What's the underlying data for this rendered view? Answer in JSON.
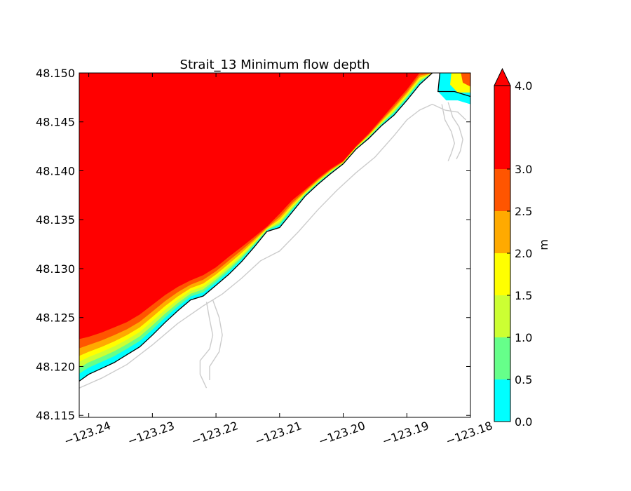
{
  "chart_data": {
    "type": "heatmap",
    "title": "Strait_13 Minimum flow depth",
    "xlabel": "",
    "ylabel": "",
    "xlim": [
      -123.2415,
      -123.18
    ],
    "ylim": [
      48.1148,
      48.15
    ],
    "x_ticks": [
      -123.24,
      -123.23,
      -123.22,
      -123.21,
      -123.2,
      -123.19,
      -123.18
    ],
    "x_tick_labels": [
      "−123.24",
      "−123.23",
      "−123.22",
      "−123.21",
      "−123.20",
      "−123.19",
      "−123.18"
    ],
    "y_ticks": [
      48.115,
      48.12,
      48.125,
      48.13,
      48.135,
      48.14,
      48.145,
      48.15
    ],
    "y_tick_labels": [
      "48.115",
      "48.120",
      "48.125",
      "48.130",
      "48.135",
      "48.140",
      "48.145",
      "48.150"
    ],
    "colorbar": {
      "label": "m",
      "levels": [
        0.0,
        0.5,
        1.0,
        1.5,
        2.0,
        2.5,
        3.0,
        4.0
      ],
      "level_labels": [
        "0.0",
        "0.5",
        "1.0",
        "1.5",
        "2.0",
        "2.5",
        "3.0",
        "4.0"
      ],
      "colors": [
        "#00ffff",
        "#66ff8a",
        "#ccff33",
        "#ffff00",
        "#ffaa00",
        "#ff5500",
        "#ff0000"
      ],
      "extend": "max"
    },
    "shoreline": [
      [
        -123.2415,
        48.1185
      ],
      [
        -123.24,
        48.1192
      ],
      [
        -123.238,
        48.1198
      ],
      [
        -123.236,
        48.1204
      ],
      [
        -123.234,
        48.1212
      ],
      [
        -123.232,
        48.122
      ],
      [
        -123.23,
        48.1232
      ],
      [
        -123.228,
        48.1245
      ],
      [
        -123.226,
        48.1257
      ],
      [
        -123.224,
        48.1268
      ],
      [
        -123.222,
        48.1272
      ],
      [
        -123.22,
        48.1283
      ],
      [
        -123.218,
        48.1294
      ],
      [
        -123.216,
        48.1307
      ],
      [
        -123.214,
        48.1322
      ],
      [
        -123.212,
        48.1338
      ],
      [
        -123.21,
        48.1342
      ],
      [
        -123.208,
        48.1358
      ],
      [
        -123.206,
        48.1374
      ],
      [
        -123.204,
        48.1386
      ],
      [
        -123.202,
        48.1397
      ],
      [
        -123.2,
        48.1407
      ],
      [
        -123.198,
        48.1422
      ],
      [
        -123.196,
        48.1433
      ],
      [
        -123.194,
        48.1446
      ],
      [
        -123.192,
        48.1457
      ],
      [
        -123.19,
        48.1472
      ],
      [
        -123.188,
        48.1488
      ],
      [
        -123.186,
        48.15
      ]
    ],
    "upper_shore": [
      [
        -123.2415,
        48.1228
      ],
      [
        -123.239,
        48.1232
      ],
      [
        -123.236,
        48.124
      ],
      [
        -123.233,
        48.1248
      ],
      [
        -123.23,
        48.1263
      ],
      [
        -123.227,
        48.1278
      ],
      [
        -123.224,
        48.1288
      ],
      [
        -123.221,
        48.1296
      ],
      [
        -123.218,
        48.1312
      ],
      [
        -123.215,
        48.1327
      ],
      [
        -123.212,
        48.1343
      ],
      [
        -123.21,
        48.1356
      ],
      [
        -123.208,
        48.137
      ],
      [
        -123.205,
        48.1386
      ],
      [
        -123.203,
        48.1398
      ],
      [
        -123.2,
        48.141
      ],
      [
        -123.198,
        48.1425
      ],
      [
        -123.196,
        48.1438
      ],
      [
        -123.194,
        48.1453
      ],
      [
        -123.192,
        48.1468
      ],
      [
        -123.19,
        48.1483
      ],
      [
        -123.1885,
        48.15
      ]
    ],
    "grey_coast": [
      [
        -123.2415,
        48.1178
      ],
      [
        -123.238,
        48.1188
      ],
      [
        -123.234,
        48.1202
      ],
      [
        -123.23,
        48.1222
      ],
      [
        -123.226,
        48.1244
      ],
      [
        -123.222,
        48.1262
      ],
      [
        -123.219,
        48.1274
      ],
      [
        -123.216,
        48.129
      ],
      [
        -123.213,
        48.1308
      ],
      [
        -123.21,
        48.1318
      ],
      [
        -123.207,
        48.1338
      ],
      [
        -123.204,
        48.136
      ],
      [
        -123.201,
        48.138
      ],
      [
        -123.198,
        48.1398
      ],
      [
        -123.195,
        48.1414
      ],
      [
        -123.192,
        48.1436
      ],
      [
        -123.19,
        48.1452
      ],
      [
        -123.188,
        48.1462
      ],
      [
        -123.186,
        48.1468
      ],
      [
        -123.184,
        48.1462
      ],
      [
        -123.182,
        48.146
      ],
      [
        -123.1807,
        48.1452
      ]
    ],
    "grey_creek": [
      [
        -123.2215,
        48.1266
      ],
      [
        -123.221,
        48.1248
      ],
      [
        -123.2205,
        48.1232
      ],
      [
        -123.221,
        48.1218
      ],
      [
        -123.2225,
        48.1206
      ],
      [
        -123.2225,
        48.1192
      ],
      [
        -123.2215,
        48.1178
      ]
    ],
    "grey_creek_2": [
      [
        -123.2205,
        48.1268
      ],
      [
        -123.2195,
        48.125
      ],
      [
        -123.219,
        48.1232
      ],
      [
        -123.2195,
        48.1215
      ],
      [
        -123.221,
        48.12
      ],
      [
        -123.221,
        48.1186
      ]
    ],
    "grey_inlet": [
      [
        -123.1845,
        48.1468
      ],
      [
        -123.184,
        48.1452
      ],
      [
        -123.183,
        48.144
      ],
      [
        -123.1825,
        48.1428
      ],
      [
        -123.183,
        48.1418
      ],
      [
        -123.1835,
        48.141
      ]
    ],
    "grey_inlet_2": [
      [
        -123.1835,
        48.147
      ],
      [
        -123.1828,
        48.1455
      ],
      [
        -123.1818,
        48.1445
      ],
      [
        -123.1812,
        48.1432
      ],
      [
        -123.1816,
        48.142
      ],
      [
        -123.1822,
        48.1412
      ]
    ],
    "corner_pond": [
      [
        -123.1848,
        48.15
      ],
      [
        -123.1851,
        48.1481
      ],
      [
        -123.1838,
        48.1472
      ],
      [
        -123.182,
        48.1472
      ],
      [
        -123.18,
        48.1468
      ],
      [
        -123.18,
        48.15
      ]
    ]
  }
}
